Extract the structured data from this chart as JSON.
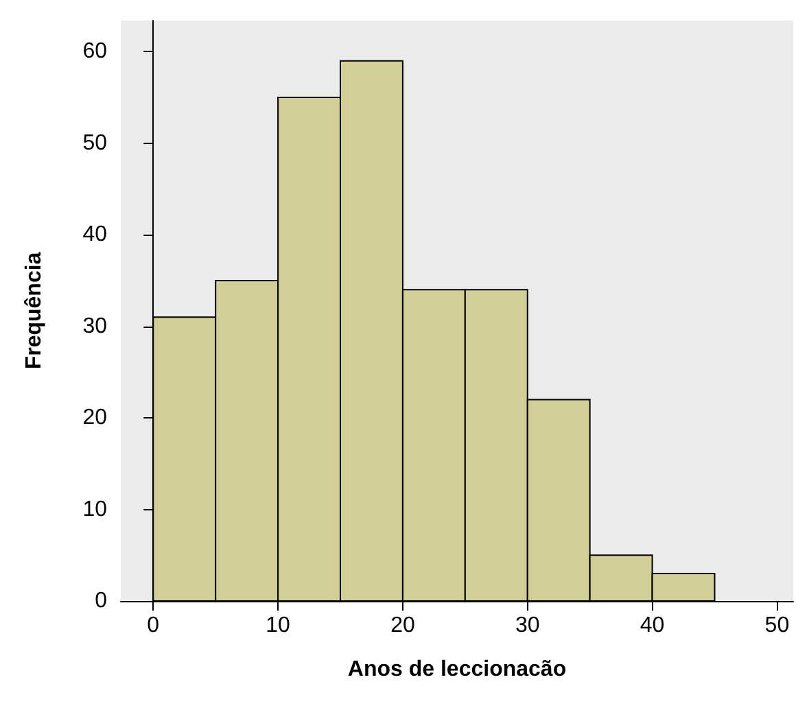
{
  "chart_data": {
    "type": "histogram",
    "xlabel": "Anos de leccionacão",
    "ylabel": "Frequência",
    "bins": [
      0,
      5,
      10,
      15,
      20,
      25,
      30,
      35,
      40,
      45
    ],
    "values": [
      31,
      35,
      55,
      59,
      34,
      34,
      22,
      5,
      3
    ],
    "color": "#d3ce97",
    "xlim": [
      -2.6,
      51.3
    ],
    "xticks": [
      0,
      10,
      20,
      30,
      40,
      50
    ],
    "ylim": [
      0,
      63.4
    ],
    "yticks": [
      0,
      10,
      20,
      30,
      40,
      50,
      60
    ]
  }
}
